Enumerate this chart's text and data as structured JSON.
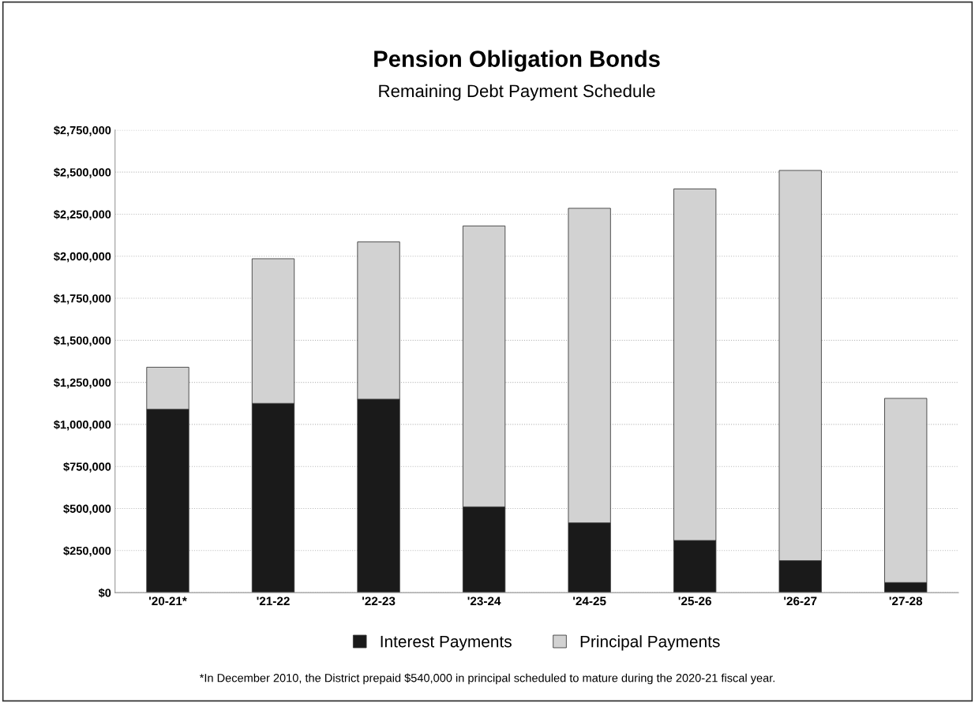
{
  "chart_data": {
    "type": "bar",
    "title": "Pension Obligation Bonds",
    "subtitle": "Remaining Debt Payment Schedule",
    "categories": [
      "'20-21*",
      "'21-22",
      "'22-23",
      "'23-24",
      "'24-25",
      "'25-26",
      "'26-27",
      "'27-28"
    ],
    "stacked": true,
    "series": [
      {
        "name": "Interest Payments",
        "color": "#1a1a1a",
        "values": [
          1090000,
          1125000,
          1150000,
          510000,
          415000,
          310000,
          190000,
          60000
        ]
      },
      {
        "name": "Principal Payments",
        "color": "#d2d2d2",
        "values": [
          250000,
          860000,
          935000,
          1670000,
          1870000,
          2090000,
          2320000,
          1095000
        ]
      }
    ],
    "ylim": [
      0,
      2750000
    ],
    "yticks": [
      {
        "value": 0,
        "label": "$0"
      },
      {
        "value": 250000,
        "label": "$250,000"
      },
      {
        "value": 500000,
        "label": "$500,000"
      },
      {
        "value": 750000,
        "label": "$750,000"
      },
      {
        "value": 1000000,
        "label": "$1,000,000"
      },
      {
        "value": 1250000,
        "label": "$1,250,000"
      },
      {
        "value": 1500000,
        "label": "$1,500,000"
      },
      {
        "value": 1750000,
        "label": "$1,750,000"
      },
      {
        "value": 2000000,
        "label": "$2,000,000"
      },
      {
        "value": 2250000,
        "label": "$2,250,000"
      },
      {
        "value": 2500000,
        "label": "$2,500,000"
      },
      {
        "value": 2750000,
        "label": "$2,750,000"
      }
    ],
    "grid": "y",
    "legend": "bottom",
    "annotations": [
      "*In December 2010, the District prepaid $540,000 in principal scheduled to mature during the 2020-21 fiscal year."
    ]
  }
}
